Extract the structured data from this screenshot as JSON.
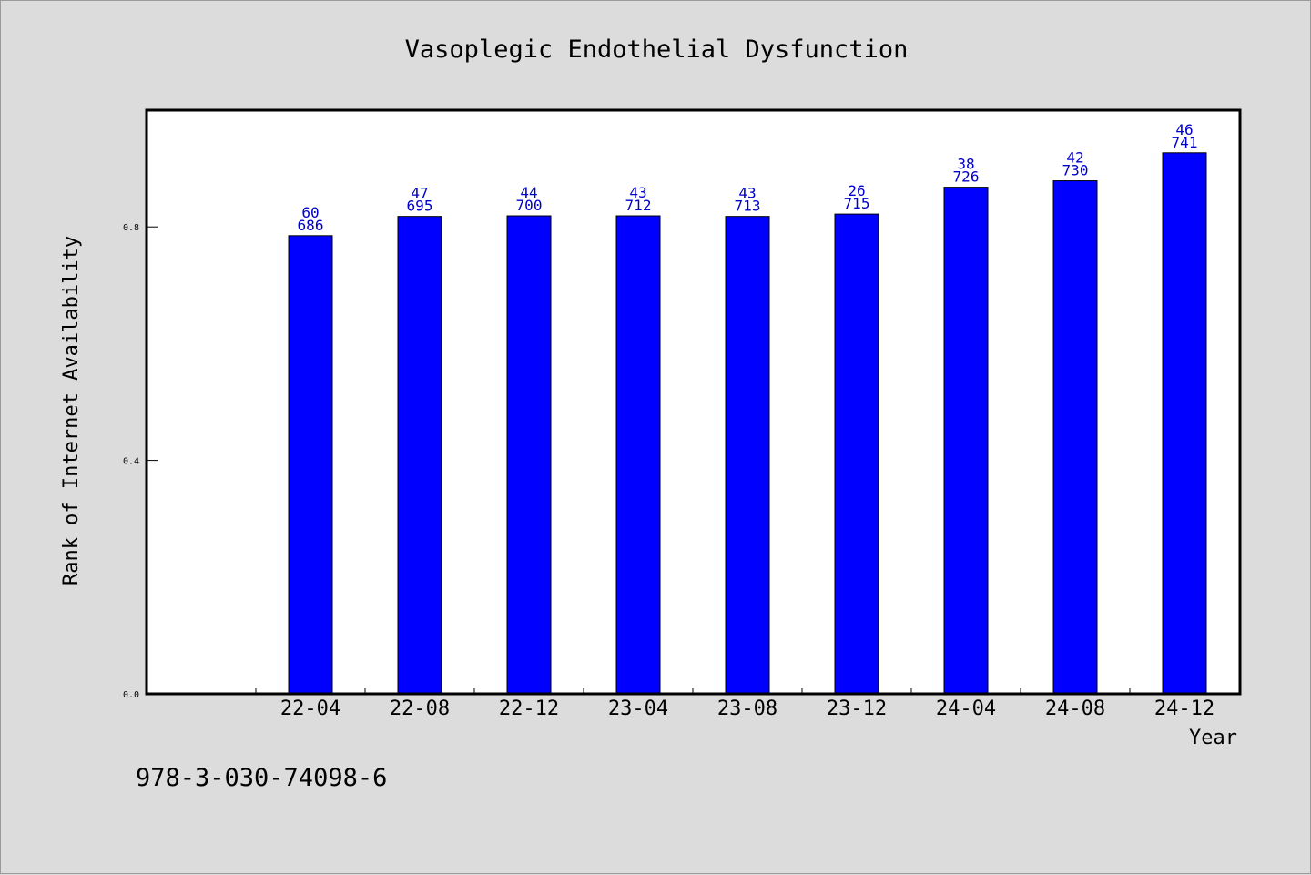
{
  "chart_data": {
    "type": "bar",
    "title": "Vasoplegic Endothelial Dysfunction",
    "xlabel": "Year",
    "ylabel": "Rank of Internet Availability",
    "categories": [
      "22-04",
      "22-08",
      "22-12",
      "23-04",
      "23-08",
      "23-12",
      "24-04",
      "24-08",
      "24-12"
    ],
    "values": [
      0.785,
      0.818,
      0.819,
      0.819,
      0.818,
      0.822,
      0.868,
      0.879,
      0.927
    ],
    "labels_top": [
      "60",
      "47",
      "44",
      "43",
      "43",
      "26",
      "38",
      "42",
      "46"
    ],
    "labels_bottom": [
      "686",
      "695",
      "700",
      "712",
      "713",
      "715",
      "726",
      "730",
      "741"
    ],
    "yticks": [
      "0.0",
      "0.4",
      "0.8"
    ],
    "ylim": [
      0,
      1.0
    ],
    "grid": false,
    "bar_color": "#0000ff",
    "label_color": "#0000cc",
    "plot_background": "#ffffff",
    "page_background": "#dcdcdc"
  },
  "footer": {
    "isbn": "978-3-030-74098-6"
  }
}
